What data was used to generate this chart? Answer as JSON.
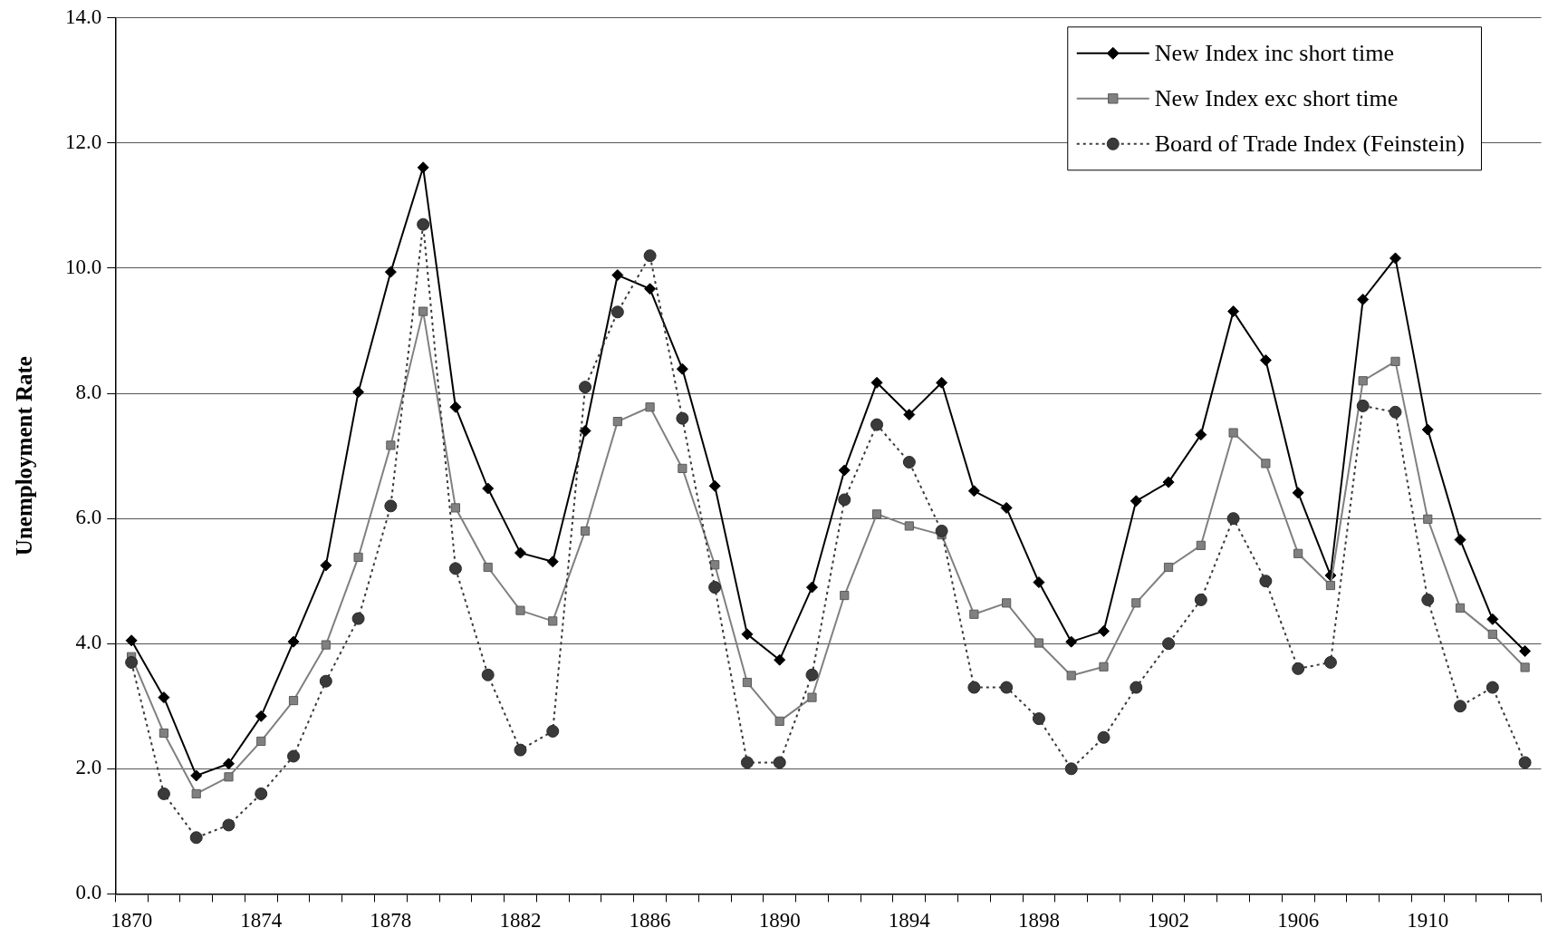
{
  "chart_data": {
    "type": "line",
    "ylabel": "Unemployment Rate",
    "categories": [
      "1870",
      null,
      null,
      null,
      "1874",
      null,
      null,
      null,
      "1878",
      null,
      null,
      null,
      "1882",
      null,
      null,
      null,
      "1886",
      null,
      null,
      null,
      "1890",
      null,
      null,
      null,
      "1894",
      null,
      null,
      null,
      "1898",
      null,
      null,
      null,
      "1902",
      null,
      null,
      null,
      "1906",
      null,
      null,
      null,
      "1910",
      null,
      null,
      null
    ],
    "series": [
      {
        "name": "New Index inc short time",
        "color": "#000000",
        "marker": "diamond",
        "line_style": "solid",
        "values": [
          4.05,
          3.14,
          1.89,
          2.08,
          2.84,
          4.03,
          5.25,
          8.02,
          9.94,
          11.61,
          7.78,
          6.48,
          5.45,
          5.31,
          7.4,
          9.89,
          9.67,
          8.39,
          6.52,
          4.15,
          3.74,
          4.9,
          6.77,
          8.17,
          7.66,
          8.17,
          6.44,
          6.17,
          4.98,
          4.03,
          4.2,
          6.28,
          6.58,
          7.34,
          9.31,
          8.53,
          6.41,
          5.09,
          9.5,
          10.16,
          7.42,
          5.66,
          4.39,
          3.88
        ]
      },
      {
        "name": "New Index exc short time",
        "color": "#808080",
        "marker": "square",
        "line_style": "solid",
        "values": [
          3.79,
          2.57,
          1.6,
          1.87,
          2.44,
          3.09,
          3.98,
          5.38,
          7.17,
          9.31,
          6.17,
          5.22,
          4.53,
          4.36,
          5.8,
          7.55,
          7.78,
          6.8,
          5.26,
          3.38,
          2.76,
          3.14,
          4.77,
          6.07,
          5.88,
          5.74,
          4.47,
          4.65,
          4.01,
          3.49,
          3.63,
          4.65,
          5.22,
          5.57,
          7.37,
          6.88,
          5.44,
          4.93,
          8.2,
          8.51,
          5.99,
          4.57,
          4.15,
          3.62
        ]
      },
      {
        "name": "Board of Trade Index (Feinstein)",
        "color": "#3a3a3a",
        "marker": "circle",
        "line_style": "dotted",
        "values": [
          3.7,
          1.6,
          0.9,
          1.1,
          1.6,
          2.2,
          3.4,
          4.4,
          6.2,
          10.7,
          5.2,
          3.5,
          2.3,
          2.6,
          8.1,
          9.3,
          10.2,
          7.6,
          4.9,
          2.1,
          2.1,
          3.5,
          6.3,
          7.5,
          6.9,
          5.8,
          3.3,
          3.3,
          2.8,
          2.0,
          2.5,
          3.3,
          4.0,
          4.7,
          6.0,
          5.0,
          3.6,
          3.7,
          7.8,
          7.7,
          4.7,
          3.0,
          3.3,
          2.1
        ]
      }
    ],
    "ylim": [
      0,
      14
    ],
    "yticks": [
      {
        "value": 0,
        "label": "0.0"
      },
      {
        "value": 2,
        "label": "2.0"
      },
      {
        "value": 4,
        "label": "4.0"
      },
      {
        "value": 6,
        "label": "6.0"
      },
      {
        "value": 8,
        "label": "8.0"
      },
      {
        "value": 10,
        "label": "10.0"
      },
      {
        "value": 12,
        "label": "12.0"
      },
      {
        "value": 14,
        "label": "14.0"
      }
    ],
    "grid": "y",
    "legend": "top right"
  }
}
